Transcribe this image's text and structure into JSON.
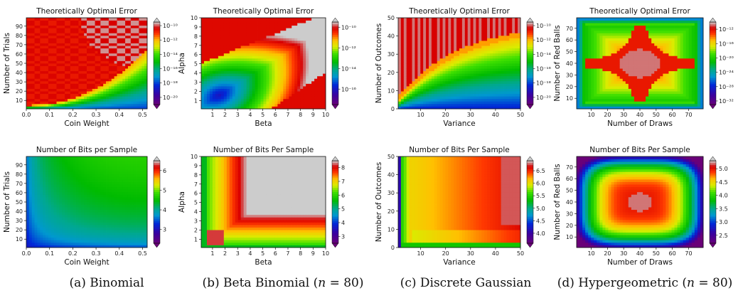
{
  "colormap": {
    "name": "nipy_spectral-like",
    "stops": [
      [
        0.0,
        "#6a0078"
      ],
      [
        0.12,
        "#3a00a0"
      ],
      [
        0.24,
        "#0028d8"
      ],
      [
        0.34,
        "#0098d0"
      ],
      [
        0.42,
        "#00a890"
      ],
      [
        0.52,
        "#00bb00"
      ],
      [
        0.62,
        "#40e000"
      ],
      [
        0.7,
        "#d8ee00"
      ],
      [
        0.78,
        "#ffc000"
      ],
      [
        0.86,
        "#ff3800"
      ],
      [
        0.93,
        "#d80000"
      ],
      [
        1.0,
        "#cccccc"
      ]
    ]
  },
  "captions": {
    "a": "(a) Binomial",
    "b": "(b) Beta Binomial (𝑛 = 80)",
    "c": "(c) Discrete Gaussian",
    "d": "(d) Hypergeometric (𝑛 = 80)"
  },
  "chart_data": [
    {
      "type": "heatmap",
      "panel": "a-top",
      "title": "Theoretically Optimal Error",
      "xlabel": "Coin Weight",
      "ylabel": "Number of Trials",
      "xlim": [
        0.0,
        0.52
      ],
      "ylim": [
        1,
        99
      ],
      "xticks": [
        "0.0",
        "0.1",
        "0.2",
        "0.3",
        "0.4",
        "0.5"
      ],
      "xtick_values": [
        0.0,
        0.1,
        0.2,
        0.3,
        0.4,
        0.5
      ],
      "yticks": [
        "10",
        "20",
        "30",
        "40",
        "50",
        "60",
        "70",
        "80",
        "90"
      ],
      "ytick_values": [
        10,
        20,
        30,
        40,
        50,
        60,
        70,
        80,
        90
      ],
      "colorbar": {
        "scale": "log",
        "labels": [
          "10⁻¹⁰",
          "10⁻¹²",
          "10⁻¹⁴",
          "10⁻¹⁶",
          "10⁻¹⁸",
          "10⁻²⁰"
        ],
        "label_values": [
          -10,
          -12,
          -14,
          -16,
          -18,
          -20
        ],
        "range": [
          -21,
          -9.5
        ]
      },
      "pattern": "binomial_error"
    },
    {
      "type": "heatmap",
      "panel": "b-top",
      "title": "Theoretically Optimal Error",
      "xlabel": "Beta",
      "ylabel": "Alpha",
      "xlim": [
        0.1,
        10
      ],
      "ylim": [
        0.1,
        10
      ],
      "xticks": [
        "1",
        "2",
        "3",
        "4",
        "5",
        "6",
        "7",
        "8",
        "9",
        "10"
      ],
      "xtick_values": [
        1,
        2,
        3,
        4,
        5,
        6,
        7,
        8,
        9,
        10
      ],
      "yticks": [
        "1",
        "2",
        "3",
        "4",
        "5",
        "6",
        "7",
        "8",
        "9",
        "10"
      ],
      "ytick_values": [
        1,
        2,
        3,
        4,
        5,
        6,
        7,
        8,
        9,
        10
      ],
      "colorbar": {
        "scale": "log",
        "labels": [
          "10⁻¹⁰",
          "10⁻¹²",
          "10⁻¹⁴",
          "10⁻¹⁶"
        ],
        "label_values": [
          -10,
          -12,
          -14,
          -16
        ],
        "range": [
          -17.5,
          -9.5
        ]
      },
      "pattern": "betabinomial_error"
    },
    {
      "type": "heatmap",
      "panel": "c-top",
      "title": "Theoretically Optimal Error",
      "xlabel": "Variance",
      "ylabel": "Number of Outcomes",
      "xlim": [
        1,
        50
      ],
      "ylim": [
        0,
        50
      ],
      "xticks": [
        "10",
        "20",
        "30",
        "40",
        "50"
      ],
      "xtick_values": [
        10,
        20,
        30,
        40,
        50
      ],
      "yticks": [
        "0",
        "10",
        "20",
        "30",
        "40",
        "50"
      ],
      "ytick_values": [
        0,
        10,
        20,
        30,
        40,
        50
      ],
      "colorbar": {
        "scale": "log",
        "labels": [
          "10⁻¹⁰",
          "10⁻¹²",
          "10⁻¹⁴",
          "10⁻¹⁶",
          "10⁻¹⁸",
          "10⁻²⁰"
        ],
        "label_values": [
          -10,
          -12,
          -14,
          -16,
          -18,
          -20
        ],
        "range": [
          -21,
          -9.5
        ]
      },
      "pattern": "gaussian_error"
    },
    {
      "type": "heatmap",
      "panel": "d-top",
      "title": "Theoretically Optimal Error",
      "xlabel": "Number of Draws",
      "ylabel": "Number of Red Balls",
      "xlim": [
        1,
        79
      ],
      "ylim": [
        1,
        79
      ],
      "xticks": [
        "10",
        "20",
        "30",
        "40",
        "50",
        "60",
        "70"
      ],
      "xtick_values": [
        10,
        20,
        30,
        40,
        50,
        60,
        70
      ],
      "yticks": [
        "10",
        "20",
        "30",
        "40",
        "50",
        "60",
        "70"
      ],
      "ytick_values": [
        10,
        20,
        30,
        40,
        50,
        60,
        70
      ],
      "colorbar": {
        "scale": "log",
        "labels": [
          "10⁻¹²",
          "10⁻¹⁶",
          "10⁻²⁰",
          "10⁻²⁴",
          "10⁻²⁸",
          "10⁻³²"
        ],
        "label_values": [
          -12,
          -16,
          -20,
          -24,
          -28,
          -32
        ],
        "range": [
          -33,
          -10
        ]
      },
      "pattern": "hypergeometric_error"
    },
    {
      "type": "heatmap",
      "panel": "a-bottom",
      "title": "Number of Bits per Sample",
      "xlabel": "Coin Weight",
      "ylabel": "Number of Trials",
      "xlim": [
        0.0,
        0.52
      ],
      "ylim": [
        1,
        99
      ],
      "xticks": [
        "0.0",
        "0.1",
        "0.2",
        "0.3",
        "0.4",
        "0.5"
      ],
      "xtick_values": [
        0.0,
        0.1,
        0.2,
        0.3,
        0.4,
        0.5
      ],
      "yticks": [
        "10",
        "20",
        "30",
        "40",
        "50",
        "60",
        "70",
        "80",
        "90"
      ],
      "ytick_values": [
        10,
        20,
        30,
        40,
        50,
        60,
        70,
        80,
        90
      ],
      "colorbar": {
        "scale": "linear",
        "labels": [
          "3",
          "4",
          "5",
          "6"
        ],
        "label_values": [
          3,
          4,
          5,
          6
        ],
        "range": [
          2.3,
          6.5
        ]
      },
      "pattern": "binomial_bits"
    },
    {
      "type": "heatmap",
      "panel": "b-bottom",
      "title": "Number of Bits Per Sample",
      "xlabel": "Beta",
      "ylabel": "Alpha",
      "xlim": [
        0.1,
        10
      ],
      "ylim": [
        0.1,
        10
      ],
      "xticks": [
        "1",
        "2",
        "3",
        "4",
        "5",
        "6",
        "7",
        "8",
        "9",
        "10"
      ],
      "xtick_values": [
        1,
        2,
        3,
        4,
        5,
        6,
        7,
        8,
        9,
        10
      ],
      "yticks": [
        "1",
        "2",
        "3",
        "4",
        "5",
        "6",
        "7",
        "8",
        "9",
        "10"
      ],
      "ytick_values": [
        1,
        2,
        3,
        4,
        5,
        6,
        7,
        8,
        9,
        10
      ],
      "colorbar": {
        "scale": "linear",
        "labels": [
          "3",
          "4",
          "5",
          "6",
          "7",
          "8"
        ],
        "label_values": [
          3,
          4,
          5,
          6,
          7,
          8
        ],
        "range": [
          2.5,
          8.5
        ]
      },
      "pattern": "betabinomial_bits"
    },
    {
      "type": "heatmap",
      "panel": "c-bottom",
      "title": "Number of Bits Per Sample",
      "xlabel": "Variance",
      "ylabel": "Number of Outcomes",
      "xlim": [
        1,
        50
      ],
      "ylim": [
        0,
        50
      ],
      "xticks": [
        "10",
        "20",
        "30",
        "40",
        "50"
      ],
      "xtick_values": [
        10,
        20,
        30,
        40,
        50
      ],
      "yticks": [
        "0",
        "10",
        "20",
        "30",
        "40",
        "50"
      ],
      "ytick_values": [
        0,
        10,
        20,
        30,
        40,
        50
      ],
      "colorbar": {
        "scale": "linear",
        "labels": [
          "4.0",
          "4.5",
          "5.0",
          "5.5",
          "6.0",
          "6.5"
        ],
        "label_values": [
          4.0,
          4.5,
          5.0,
          5.5,
          6.0,
          6.5
        ],
        "range": [
          3.6,
          6.9
        ]
      },
      "pattern": "gaussian_bits"
    },
    {
      "type": "heatmap",
      "panel": "d-bottom",
      "title": "Number of Bits Per Sample",
      "xlabel": "Number of Draws",
      "ylabel": "Number of Red Balls",
      "xlim": [
        1,
        79
      ],
      "ylim": [
        1,
        79
      ],
      "xticks": [
        "10",
        "20",
        "30",
        "40",
        "50",
        "60",
        "70"
      ],
      "xtick_values": [
        10,
        20,
        30,
        40,
        50,
        60,
        70
      ],
      "yticks": [
        "10",
        "20",
        "30",
        "40",
        "50",
        "60",
        "70"
      ],
      "ytick_values": [
        10,
        20,
        30,
        40,
        50,
        60,
        70
      ],
      "colorbar": {
        "scale": "linear",
        "labels": [
          "2.5",
          "3.0",
          "3.5",
          "4.0",
          "4.5",
          "5.0"
        ],
        "label_values": [
          2.5,
          3.0,
          3.5,
          4.0,
          4.5,
          5.0
        ],
        "range": [
          2.2,
          5.3
        ]
      },
      "pattern": "hypergeometric_bits"
    }
  ]
}
